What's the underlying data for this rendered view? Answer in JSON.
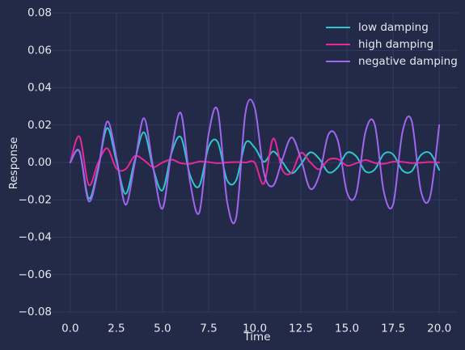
{
  "chart_data": {
    "type": "line",
    "title": "",
    "xlabel": "Time",
    "ylabel": "Response",
    "xlim": [
      -1,
      21
    ],
    "ylim": [
      -0.08,
      0.08
    ],
    "x_ticks": [
      0,
      2.5,
      5,
      7.5,
      10,
      12.5,
      15,
      17.5,
      20
    ],
    "x_tick_labels": [
      "0.0",
      "2.5",
      "5.0",
      "7.5",
      "10.0",
      "12.5",
      "15.0",
      "17.5",
      "20.0"
    ],
    "y_ticks": [
      -0.08,
      -0.06,
      -0.04,
      -0.02,
      0,
      0.02,
      0.04,
      0.06,
      0.08
    ],
    "y_tick_labels": [
      "−0.08",
      "−0.06",
      "−0.04",
      "−0.02",
      "0.00",
      "0.02",
      "0.04",
      "0.06",
      "0.08"
    ],
    "grid": true,
    "legend_position": "top-right",
    "background": "#222a48",
    "series": [
      {
        "name": "low damping",
        "color": "#2ac8cc",
        "x": [
          0,
          0.5,
          1,
          1.5,
          2,
          2.5,
          3,
          3.5,
          4,
          4.5,
          5,
          5.5,
          6,
          6.5,
          7,
          7.5,
          8,
          8.5,
          9,
          9.5,
          10,
          10.5,
          11,
          11.5,
          12,
          12.5,
          13,
          13.5,
          14,
          14.5,
          15,
          15.5,
          16,
          16.5,
          17,
          17.5,
          18,
          18.5,
          19,
          19.5,
          20
        ],
        "y": [
          0,
          0.0059,
          -0.0192,
          -0.0035,
          0.0184,
          0.001,
          -0.0168,
          0.0011,
          0.0161,
          -0.0034,
          -0.0149,
          0.0054,
          0.0135,
          -0.007,
          -0.0125,
          0.0083,
          0.0108,
          -0.0095,
          -0.0093,
          0.0104,
          0.0079,
          0.0004,
          0.0059,
          0.0002,
          -0.0058,
          -0.001,
          0.0054,
          0.0019,
          -0.0053,
          -0.0026,
          0.0052,
          0.0033,
          -0.0048,
          -0.0038,
          0.0046,
          0.0043,
          -0.0042,
          -0.0047,
          0.0039,
          0.005,
          -0.004
        ]
      },
      {
        "name": "high damping",
        "color": "#e8279a",
        "x": [
          0,
          0.5,
          1,
          1.5,
          2,
          2.5,
          3,
          3.5,
          4,
          4.5,
          5,
          5.5,
          6,
          6.5,
          7,
          7.5,
          8,
          8.5,
          9,
          9.5,
          10,
          10.5,
          11,
          11.5,
          12,
          12.5,
          13,
          13.5,
          14,
          14.5,
          15,
          15.5,
          16,
          16.5,
          17,
          17.5,
          18,
          18.5,
          19,
          19.5,
          20
        ],
        "y": [
          0,
          0.0139,
          -0.0119,
          -0.0004,
          0.0076,
          -0.0032,
          -0.0036,
          0.0034,
          0.0012,
          -0.0025,
          0.0,
          0.0015,
          -0.0004,
          -0.0007,
          0.0005,
          0.0002,
          -0.0004,
          0.0,
          0.0002,
          0.0,
          -0.0001,
          -0.0113,
          0.0128,
          -0.0041,
          -0.0053,
          0.0051,
          0.0002,
          -0.0037,
          0.0015,
          0.0018,
          -0.0017,
          -0.0004,
          0.0013,
          -0.0002,
          -0.0007,
          0.0004,
          0.0003,
          -0.0003,
          -0.0001,
          0.0002,
          0.0
        ]
      },
      {
        "name": "negative damping",
        "color": "#a066f0",
        "x": [
          0,
          0.5,
          1,
          1.5,
          2,
          2.5,
          3,
          3.5,
          4,
          4.5,
          5,
          5.5,
          6,
          6.5,
          7,
          7.5,
          8,
          8.5,
          9,
          9.5,
          10,
          10.5,
          11,
          11.5,
          12,
          12.5,
          13,
          13.5,
          14,
          14.5,
          15,
          15.5,
          16,
          16.5,
          17,
          17.5,
          18,
          18.5,
          19,
          19.5,
          20
        ],
        "y": [
          0,
          0.0061,
          -0.0207,
          -0.0047,
          0.0219,
          0.0029,
          -0.0226,
          -0.0003,
          0.0237,
          -0.003,
          -0.0247,
          0.0066,
          0.0264,
          -0.0107,
          -0.0267,
          0.0151,
          0.0276,
          -0.0207,
          -0.0291,
          0.0268,
          0.0293,
          -0.0056,
          -0.0124,
          0.0018,
          0.0134,
          0.002,
          -0.014,
          -0.0067,
          0.0151,
          0.0118,
          -0.016,
          -0.0166,
          0.0163,
          0.0204,
          -0.0159,
          -0.0224,
          0.016,
          0.0224,
          -0.015,
          -0.0184,
          0.02
        ]
      }
    ]
  }
}
